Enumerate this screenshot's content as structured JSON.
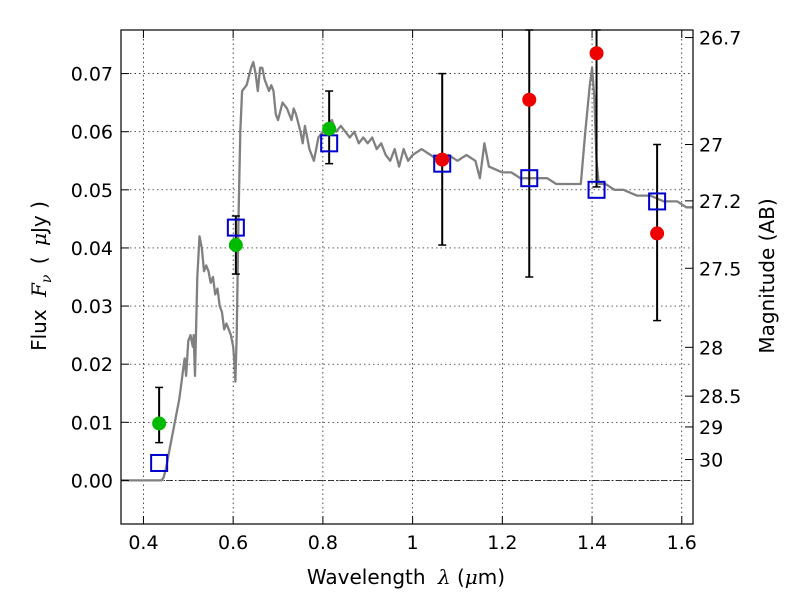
{
  "chart_data": {
    "type": "scatter",
    "xlabel": {
      "pre": "Wavelength",
      "symbol": "λ",
      "open": "(",
      "unit_mu": "μ",
      "unit_rest": "m)"
    },
    "ylabel": {
      "pre": "Flux",
      "symbol": "F",
      "sub": "ν",
      "open": "(",
      "unit_mu": "μ",
      "unit_rest": "Jy )"
    },
    "y2label": "Magnitude (AB)",
    "xlim": [
      0.35,
      1.625
    ],
    "ylim": [
      -0.0075,
      0.0775
    ],
    "grid": true,
    "x_ticks": [
      {
        "value": 0.4,
        "label": "0.4"
      },
      {
        "value": 0.6,
        "label": "0.6"
      },
      {
        "value": 0.8,
        "label": "0.8"
      },
      {
        "value": 1.0,
        "label": "1"
      },
      {
        "value": 1.2,
        "label": "1.2"
      },
      {
        "value": 1.4,
        "label": "1.4"
      },
      {
        "value": 1.6,
        "label": "1.6"
      }
    ],
    "y_ticks": [
      {
        "value": 0.0,
        "label": "0.00"
      },
      {
        "value": 0.01,
        "label": "0.01"
      },
      {
        "value": 0.02,
        "label": "0.02"
      },
      {
        "value": 0.03,
        "label": "0.03"
      },
      {
        "value": 0.04,
        "label": "0.04"
      },
      {
        "value": 0.05,
        "label": "0.05"
      },
      {
        "value": 0.06,
        "label": "0.06"
      },
      {
        "value": 0.07,
        "label": "0.07"
      }
    ],
    "mag_ticks": [
      {
        "label": "26.7",
        "flux": 0.0762
      },
      {
        "label": "27",
        "flux": 0.0578
      },
      {
        "label": "27.2",
        "flux": 0.0481
      },
      {
        "label": "27.5",
        "flux": 0.0365
      },
      {
        "label": "28",
        "flux": 0.0229
      },
      {
        "label": "28.5",
        "flux": 0.0145
      },
      {
        "label": "29",
        "flux": 0.0092
      },
      {
        "label": "30",
        "flux": 0.0036
      }
    ],
    "model_spectrum": {
      "color": "#808080",
      "points": [
        [
          0.35,
          0.0
        ],
        [
          0.44,
          0.0
        ],
        [
          0.445,
          0.0005
        ],
        [
          0.45,
          0.002
        ],
        [
          0.46,
          0.006
        ],
        [
          0.47,
          0.01
        ],
        [
          0.48,
          0.014
        ],
        [
          0.485,
          0.017
        ],
        [
          0.49,
          0.02
        ],
        [
          0.492,
          0.021
        ],
        [
          0.495,
          0.018
        ],
        [
          0.5,
          0.024
        ],
        [
          0.505,
          0.025
        ],
        [
          0.51,
          0.023
        ],
        [
          0.512,
          0.025
        ],
        [
          0.515,
          0.018
        ],
        [
          0.52,
          0.035
        ],
        [
          0.525,
          0.042
        ],
        [
          0.53,
          0.04
        ],
        [
          0.535,
          0.036
        ],
        [
          0.54,
          0.037
        ],
        [
          0.545,
          0.036
        ],
        [
          0.55,
          0.034
        ],
        [
          0.555,
          0.035
        ],
        [
          0.56,
          0.032
        ],
        [
          0.565,
          0.033
        ],
        [
          0.57,
          0.03
        ],
        [
          0.575,
          0.029
        ],
        [
          0.58,
          0.026
        ],
        [
          0.585,
          0.027
        ],
        [
          0.59,
          0.026
        ],
        [
          0.595,
          0.025
        ],
        [
          0.6,
          0.023
        ],
        [
          0.603,
          0.02
        ],
        [
          0.605,
          0.017
        ],
        [
          0.608,
          0.025
        ],
        [
          0.612,
          0.045
        ],
        [
          0.616,
          0.06
        ],
        [
          0.62,
          0.067
        ],
        [
          0.63,
          0.068
        ],
        [
          0.64,
          0.071
        ],
        [
          0.645,
          0.072
        ],
        [
          0.65,
          0.07
        ],
        [
          0.655,
          0.067
        ],
        [
          0.66,
          0.071
        ],
        [
          0.665,
          0.071
        ],
        [
          0.67,
          0.069
        ],
        [
          0.68,
          0.067
        ],
        [
          0.685,
          0.068
        ],
        [
          0.69,
          0.067
        ],
        [
          0.695,
          0.063
        ],
        [
          0.7,
          0.062
        ],
        [
          0.71,
          0.065
        ],
        [
          0.72,
          0.064
        ],
        [
          0.73,
          0.062
        ],
        [
          0.735,
          0.064
        ],
        [
          0.74,
          0.063
        ],
        [
          0.75,
          0.06
        ],
        [
          0.755,
          0.058
        ],
        [
          0.76,
          0.061
        ],
        [
          0.765,
          0.059
        ],
        [
          0.77,
          0.057
        ],
        [
          0.78,
          0.055
        ],
        [
          0.785,
          0.057
        ],
        [
          0.79,
          0.059
        ],
        [
          0.8,
          0.06
        ],
        [
          0.81,
          0.061
        ],
        [
          0.82,
          0.062
        ],
        [
          0.83,
          0.06
        ],
        [
          0.84,
          0.061
        ],
        [
          0.85,
          0.06
        ],
        [
          0.86,
          0.059
        ],
        [
          0.87,
          0.06
        ],
        [
          0.88,
          0.058
        ],
        [
          0.89,
          0.059
        ],
        [
          0.9,
          0.058
        ],
        [
          0.91,
          0.059
        ],
        [
          0.92,
          0.057
        ],
        [
          0.93,
          0.058
        ],
        [
          0.94,
          0.056
        ],
        [
          0.95,
          0.055
        ],
        [
          0.96,
          0.057
        ],
        [
          0.97,
          0.054
        ],
        [
          0.98,
          0.057
        ],
        [
          0.99,
          0.055
        ],
        [
          1.0,
          0.056
        ],
        [
          1.02,
          0.057
        ],
        [
          1.04,
          0.056
        ],
        [
          1.06,
          0.055
        ],
        [
          1.08,
          0.056
        ],
        [
          1.1,
          0.055
        ],
        [
          1.12,
          0.056
        ],
        [
          1.14,
          0.055
        ],
        [
          1.15,
          0.052
        ],
        [
          1.16,
          0.058
        ],
        [
          1.17,
          0.054
        ],
        [
          1.2,
          0.053
        ],
        [
          1.22,
          0.053
        ],
        [
          1.24,
          0.052
        ],
        [
          1.26,
          0.052
        ],
        [
          1.28,
          0.052
        ],
        [
          1.3,
          0.052
        ],
        [
          1.32,
          0.051
        ],
        [
          1.34,
          0.051
        ],
        [
          1.36,
          0.051
        ],
        [
          1.375,
          0.051
        ],
        [
          1.385,
          0.06
        ],
        [
          1.395,
          0.068
        ],
        [
          1.4,
          0.071
        ],
        [
          1.405,
          0.066
        ],
        [
          1.41,
          0.055
        ],
        [
          1.415,
          0.051
        ],
        [
          1.43,
          0.051
        ],
        [
          1.45,
          0.05
        ],
        [
          1.47,
          0.05
        ],
        [
          1.5,
          0.049
        ],
        [
          1.53,
          0.049
        ],
        [
          1.56,
          0.048
        ],
        [
          1.59,
          0.048
        ],
        [
          1.61,
          0.047
        ],
        [
          1.625,
          0.047
        ]
      ]
    },
    "model_bands": {
      "color": "#0000cc",
      "points": [
        {
          "x": 0.435,
          "y": 0.003
        },
        {
          "x": 0.606,
          "y": 0.0435
        },
        {
          "x": 0.814,
          "y": 0.058
        },
        {
          "x": 1.066,
          "y": 0.0545
        },
        {
          "x": 1.26,
          "y": 0.052
        },
        {
          "x": 1.41,
          "y": 0.05
        },
        {
          "x": 1.545,
          "y": 0.048
        }
      ]
    },
    "detections": {
      "color": "#00bb00",
      "points": [
        {
          "x": 0.435,
          "y": 0.0098,
          "err_low": 0.0065,
          "err_high": 0.016
        },
        {
          "x": 0.606,
          "y": 0.0405,
          "err_low": 0.0355,
          "err_high": 0.0455
        },
        {
          "x": 0.814,
          "y": 0.0605,
          "err_low": 0.0545,
          "err_high": 0.067
        }
      ]
    },
    "upper_limits": {
      "color": "#ee0000",
      "points": [
        {
          "x": 1.066,
          "y": 0.0552,
          "err_low": 0.0405,
          "err_high": 0.07
        },
        {
          "x": 1.26,
          "y": 0.0655,
          "err_low": 0.035,
          "err_high": 0.0775
        },
        {
          "x": 1.41,
          "y": 0.0735,
          "err_low": 0.0505,
          "err_high": 0.0775
        },
        {
          "x": 1.545,
          "y": 0.0425,
          "err_low": 0.0275,
          "err_high": 0.0578
        }
      ]
    }
  }
}
